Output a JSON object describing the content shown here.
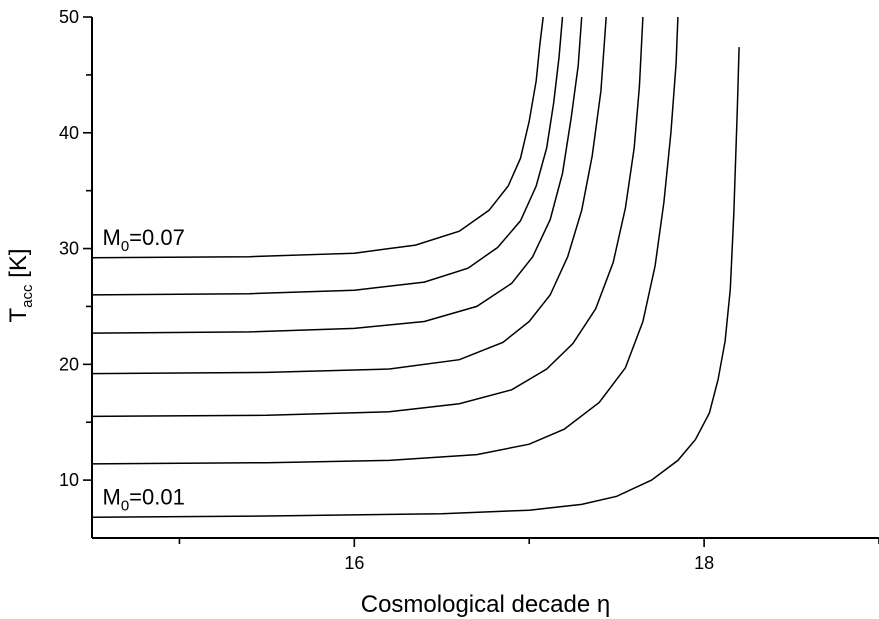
{
  "chart_data": {
    "type": "line",
    "title": "",
    "xlabel": "Cosmological decade η",
    "ylabel_main": "T",
    "ylabel_sub": "acc",
    "ylabel_unit": " [K]",
    "xlim": [
      14.5,
      19.0
    ],
    "ylim": [
      5,
      50
    ],
    "x_ticks_major": [
      {
        "value": 16,
        "label": "16"
      },
      {
        "value": 18,
        "label": "18"
      }
    ],
    "x_ticks_minor": [
      15,
      17,
      19
    ],
    "y_ticks_major": [
      {
        "value": 10,
        "label": "10"
      },
      {
        "value": 20,
        "label": "20"
      },
      {
        "value": 30,
        "label": "30"
      },
      {
        "value": 40,
        "label": "40"
      },
      {
        "value": 50,
        "label": "50"
      }
    ],
    "y_ticks_minor": [
      15,
      25,
      35,
      45
    ],
    "annotations": [
      {
        "name": "annotation-m0-top",
        "main": "M",
        "sub": "0",
        "rest": "=0.07",
        "x": 14.56,
        "y": 30.3
      },
      {
        "name": "annotation-m0-bottom",
        "main": "M",
        "sub": "0",
        "rest": "=0.01",
        "x": 14.56,
        "y": 7.9
      }
    ],
    "series": [
      {
        "label": "M0=0.01",
        "values": [
          [
            14.5,
            6.8
          ],
          [
            15.5,
            6.9
          ],
          [
            16.5,
            7.1
          ],
          [
            17.0,
            7.4
          ],
          [
            17.3,
            7.9
          ],
          [
            17.5,
            8.6
          ],
          [
            17.7,
            10.0
          ],
          [
            17.85,
            11.7
          ],
          [
            17.95,
            13.5
          ],
          [
            18.03,
            15.8
          ],
          [
            18.08,
            18.7
          ],
          [
            18.12,
            22.0
          ],
          [
            18.15,
            26.5
          ],
          [
            18.17,
            33.0
          ],
          [
            18.19,
            42.0
          ],
          [
            18.2,
            47.4
          ]
        ]
      },
      {
        "label": "",
        "values": [
          [
            14.5,
            11.4
          ],
          [
            15.5,
            11.5
          ],
          [
            16.2,
            11.7
          ],
          [
            16.7,
            12.2
          ],
          [
            17.0,
            13.1
          ],
          [
            17.2,
            14.4
          ],
          [
            17.4,
            16.7
          ],
          [
            17.55,
            19.7
          ],
          [
            17.65,
            23.7
          ],
          [
            17.72,
            28.5
          ],
          [
            17.77,
            34.0
          ],
          [
            17.81,
            40.0
          ],
          [
            17.84,
            46.0
          ],
          [
            17.85,
            50.0
          ]
        ]
      },
      {
        "label": "",
        "values": [
          [
            14.5,
            15.5
          ],
          [
            15.5,
            15.6
          ],
          [
            16.2,
            15.9
          ],
          [
            16.6,
            16.6
          ],
          [
            16.9,
            17.8
          ],
          [
            17.1,
            19.6
          ],
          [
            17.25,
            21.8
          ],
          [
            17.38,
            24.8
          ],
          [
            17.48,
            28.8
          ],
          [
            17.55,
            33.5
          ],
          [
            17.6,
            38.7
          ],
          [
            17.63,
            44.0
          ],
          [
            17.65,
            50.0
          ]
        ]
      },
      {
        "label": "",
        "values": [
          [
            14.5,
            19.2
          ],
          [
            15.5,
            19.3
          ],
          [
            16.2,
            19.6
          ],
          [
            16.6,
            20.4
          ],
          [
            16.85,
            21.9
          ],
          [
            17.0,
            23.7
          ],
          [
            17.12,
            26.0
          ],
          [
            17.22,
            29.3
          ],
          [
            17.3,
            33.3
          ],
          [
            17.36,
            38.0
          ],
          [
            17.41,
            43.6
          ],
          [
            17.44,
            50.0
          ]
        ]
      },
      {
        "label": "",
        "values": [
          [
            14.5,
            22.7
          ],
          [
            15.4,
            22.8
          ],
          [
            16.0,
            23.1
          ],
          [
            16.4,
            23.7
          ],
          [
            16.7,
            25.0
          ],
          [
            16.9,
            27.0
          ],
          [
            17.02,
            29.3
          ],
          [
            17.12,
            32.5
          ],
          [
            17.19,
            36.5
          ],
          [
            17.24,
            41.3
          ],
          [
            17.28,
            45.8
          ],
          [
            17.3,
            50.0
          ]
        ]
      },
      {
        "label": "",
        "values": [
          [
            14.5,
            26.0
          ],
          [
            15.4,
            26.1
          ],
          [
            16.0,
            26.4
          ],
          [
            16.4,
            27.1
          ],
          [
            16.65,
            28.3
          ],
          [
            16.82,
            30.1
          ],
          [
            16.95,
            32.4
          ],
          [
            17.04,
            35.4
          ],
          [
            17.1,
            38.7
          ],
          [
            17.14,
            42.6
          ],
          [
            17.17,
            46.5
          ],
          [
            17.19,
            50.0
          ]
        ]
      },
      {
        "label": "M0=0.07",
        "values": [
          [
            14.5,
            29.2
          ],
          [
            15.4,
            29.3
          ],
          [
            16.0,
            29.6
          ],
          [
            16.35,
            30.3
          ],
          [
            16.6,
            31.5
          ],
          [
            16.77,
            33.3
          ],
          [
            16.88,
            35.4
          ],
          [
            16.95,
            37.8
          ],
          [
            17.0,
            41.0
          ],
          [
            17.04,
            44.5
          ],
          [
            17.06,
            47.5
          ],
          [
            17.08,
            50.0
          ]
        ]
      }
    ]
  }
}
